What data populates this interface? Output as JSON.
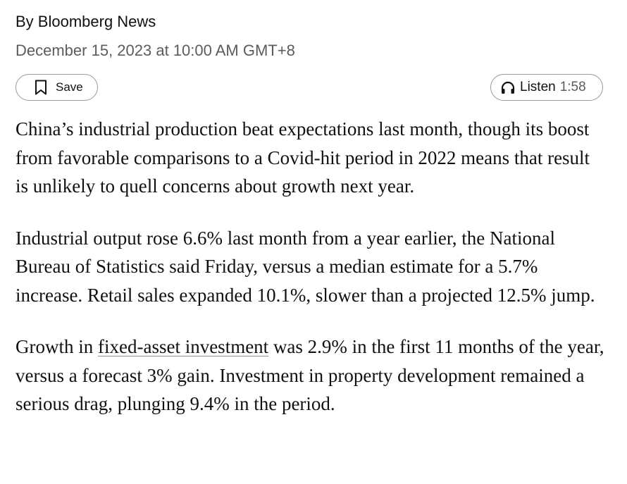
{
  "byline": "By Bloomberg News",
  "dateline": "December 15, 2023 at 10:00 AM GMT+8",
  "save_button": {
    "label": "Save",
    "icon": "bookmark-icon"
  },
  "listen_button": {
    "label": "Listen",
    "duration": "1:58",
    "icon": "headphones-icon"
  },
  "paragraphs": {
    "p1": "China’s industrial production beat expectations last month, though its boost from favorable comparisons to a Covid-hit period in 2022 means that result is unlikely to quell concerns about growth next year.",
    "p2": "Industrial output rose 6.6% last month from a year earlier, the National Bureau of Statistics said Friday, versus a median estimate for a 5.7% increase. Retail sales expanded 10.1%, slower than a projected 12.5% jump.",
    "p3_before": "Growth in ",
    "p3_link": "fixed-asset investment",
    "p3_after": " was 2.9% in the first 11 months of the year, versus a forecast 3% gain. Investment in property development remained a serious drag, plunging 9.4% in the period."
  }
}
